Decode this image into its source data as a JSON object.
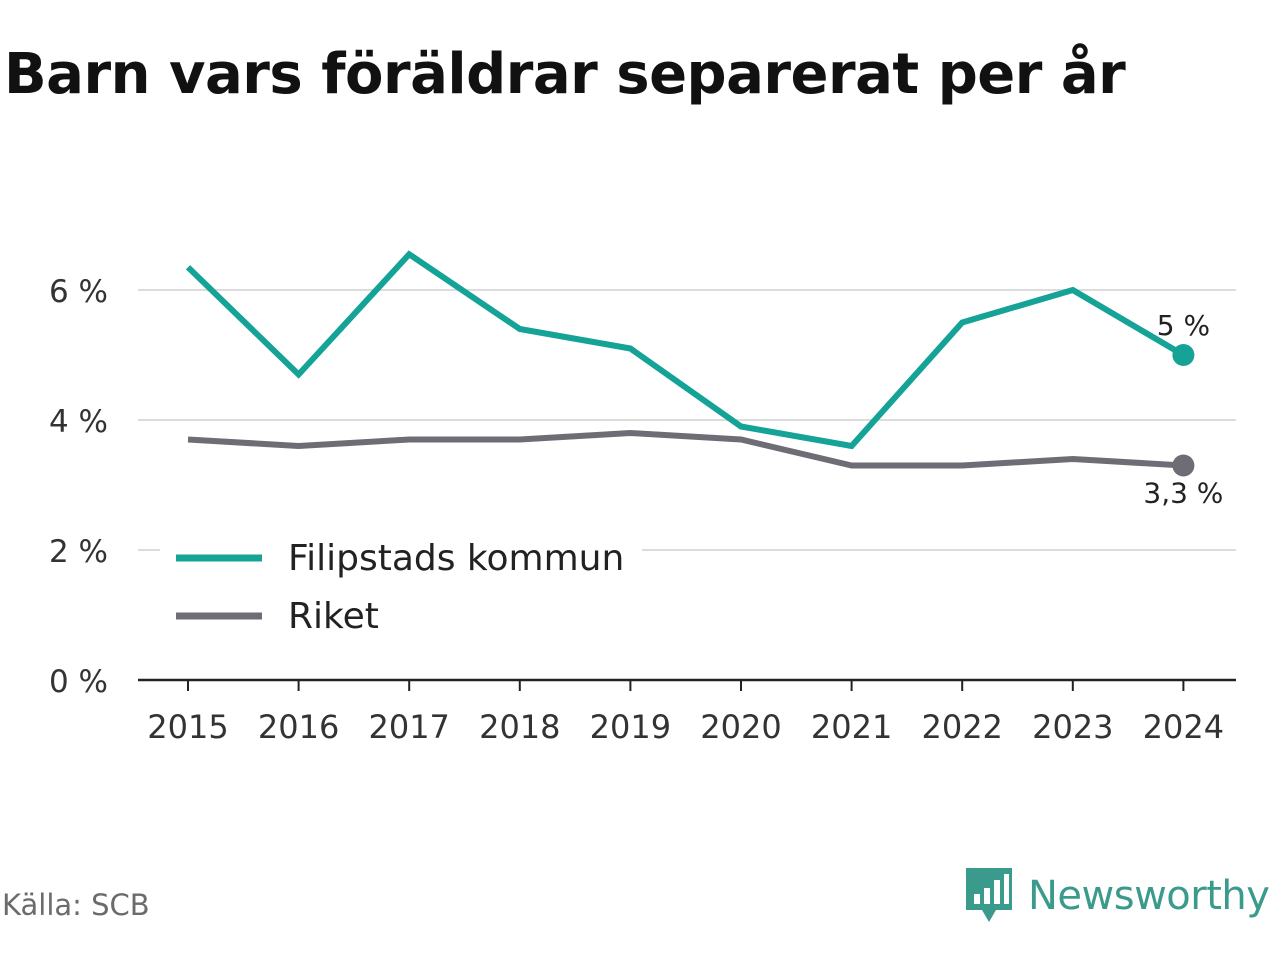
{
  "title": "Barn vars föräldrar separerat per år",
  "source": "Källa: SCB",
  "brand": {
    "name": "Newsworthy",
    "icon": "newsworthy-logo-icon",
    "color": "#3a9a8c"
  },
  "chart_data": {
    "type": "line",
    "x": [
      "2015",
      "2016",
      "2017",
      "2018",
      "2019",
      "2020",
      "2021",
      "2022",
      "2023",
      "2024"
    ],
    "ylim": [
      0,
      7
    ],
    "yticks": [
      0,
      2,
      4,
      6
    ],
    "ytick_labels": [
      "0 %",
      "2 %",
      "4 %",
      "6 %"
    ],
    "grid": true,
    "legend_position": "bottom-left",
    "series": [
      {
        "name": "Filipstads kommun",
        "color": "#14a396",
        "values": [
          6.35,
          4.7,
          6.55,
          5.4,
          5.1,
          3.9,
          3.6,
          5.5,
          6.0,
          5.0
        ],
        "end_label": "5 %"
      },
      {
        "name": "Riket",
        "color": "#6e6d75",
        "values": [
          3.7,
          3.6,
          3.7,
          3.7,
          3.8,
          3.7,
          3.3,
          3.3,
          3.4,
          3.3
        ],
        "end_label": "3,3 %"
      }
    ]
  }
}
